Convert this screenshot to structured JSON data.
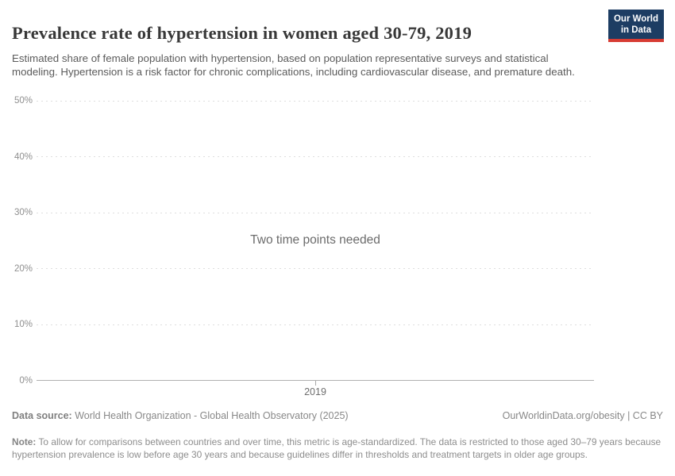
{
  "header": {
    "title": "Prevalence rate of hypertension in women aged 30-79, 2019",
    "subtitle": "Estimated share of female population with hypertension, based on population representative surveys and statistical modeling. Hypertension is a risk factor for chronic complications, including cardiovascular disease, and premature death.",
    "logo": {
      "line1": "Our World",
      "line2": "in Data",
      "bg_color": "#1d3d63",
      "accent_color": "#d73c34"
    }
  },
  "chart_data": {
    "type": "line",
    "title": "Prevalence rate of hypertension in women aged 30-79, 2019",
    "series": [],
    "status_message": "Two time points needed",
    "x_ticks": [
      "2019"
    ],
    "y_ticks": [
      "0%",
      "10%",
      "20%",
      "30%",
      "40%",
      "50%"
    ],
    "ylim": [
      0,
      50
    ],
    "xlabel": "",
    "ylabel": "",
    "grid": "horizontal-dashed",
    "legend_position": "none"
  },
  "footer": {
    "datasource_label": "Data source:",
    "datasource_text": " World Health Organization - Global Health Observatory (2025)",
    "attribution": "OurWorldinData.org/obesity | CC BY",
    "note_label": "Note:",
    "note_text": " To allow for comparisons between countries and over time, this metric is age-standardized. The data is restricted to those aged 30–79 years because hypertension prevalence is low before age 30 years and because guidelines differ in thresholds and treatment targets in older age groups."
  },
  "colors": {
    "title": "#383838",
    "subtitle": "#5b5b5b",
    "axis_label": "#8f8f8f",
    "gridline": "#dedede",
    "axis_line": "#b0b0b0",
    "footer_text": "#888888",
    "logo_background": "#1d3d63",
    "logo_accent": "#d73c34"
  }
}
